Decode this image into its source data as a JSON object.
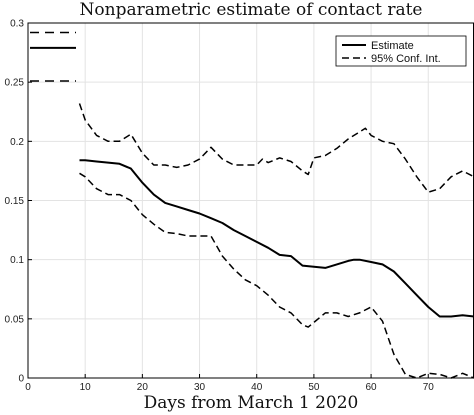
{
  "chart_data": {
    "type": "line",
    "title": "Nonparametric estimate of contact rate",
    "xlabel": "Days from March 1 2020",
    "ylabel": "",
    "xlim": [
      0,
      78
    ],
    "ylim": [
      0,
      0.3
    ],
    "x_ticks": [
      0,
      10,
      20,
      30,
      40,
      50,
      60,
      70
    ],
    "x_tick_labels": [
      "0",
      "10",
      "20",
      "30",
      "40",
      "50",
      "60",
      "70"
    ],
    "y_ticks": [
      0,
      0.05,
      0.1,
      0.15,
      0.2,
      0.25,
      0.3
    ],
    "y_tick_labels": [
      "0",
      "0.05",
      "0.1",
      "0.15",
      "0.2",
      "0.25",
      "0.3"
    ],
    "grid": true,
    "legend_position": "top-right",
    "legend": [
      {
        "label": "Estimate",
        "style": "solid"
      },
      {
        "label": "95% Conf. Int.",
        "style": "dashed"
      }
    ],
    "left_margin_marks": [
      {
        "y": 0.292,
        "style": "dashed"
      },
      {
        "y": 0.279,
        "style": "solid"
      },
      {
        "y": 0.251,
        "style": "dashed"
      }
    ],
    "series": [
      {
        "style": "solid",
        "x": [
          9,
          10,
          12,
          14,
          16,
          18,
          20,
          22,
          24,
          26,
          28,
          30,
          32,
          34,
          36,
          38,
          40,
          42,
          44,
          46,
          48,
          50,
          52,
          54,
          56,
          57,
          58,
          60,
          62,
          64,
          66,
          68,
          70,
          72,
          74,
          76,
          78
        ],
        "y": [
          0.184,
          0.184,
          0.183,
          0.182,
          0.181,
          0.177,
          0.165,
          0.155,
          0.148,
          0.145,
          0.142,
          0.139,
          0.135,
          0.131,
          0.125,
          0.12,
          0.115,
          0.11,
          0.104,
          0.103,
          0.095,
          0.094,
          0.093,
          0.096,
          0.099,
          0.1,
          0.1,
          0.098,
          0.096,
          0.09,
          0.08,
          0.07,
          0.06,
          0.052,
          0.052,
          0.053,
          0.052
        ]
      },
      {
        "style": "dashed",
        "x": [
          9,
          10,
          12,
          14,
          16,
          18,
          20,
          22,
          24,
          26,
          28,
          30,
          32,
          34,
          36,
          38,
          40,
          41,
          42,
          44,
          46,
          48,
          49,
          50,
          52,
          54,
          56,
          58,
          59,
          60,
          62,
          64,
          66,
          68,
          70,
          72,
          74,
          76,
          78
        ],
        "y": [
          0.232,
          0.218,
          0.205,
          0.2,
          0.2,
          0.206,
          0.19,
          0.18,
          0.18,
          0.178,
          0.18,
          0.185,
          0.195,
          0.185,
          0.18,
          0.18,
          0.18,
          0.185,
          0.182,
          0.186,
          0.183,
          0.175,
          0.172,
          0.186,
          0.188,
          0.194,
          0.202,
          0.208,
          0.211,
          0.205,
          0.2,
          0.198,
          0.185,
          0.17,
          0.157,
          0.16,
          0.17,
          0.175,
          0.17
        ]
      },
      {
        "style": "dashed",
        "x": [
          9,
          10,
          12,
          14,
          16,
          18,
          20,
          22,
          24,
          26,
          28,
          30,
          32,
          34,
          36,
          38,
          40,
          42,
          44,
          46,
          48,
          49,
          50,
          52,
          54,
          56,
          58,
          60,
          62,
          64,
          66,
          68,
          70,
          72,
          74,
          76,
          78
        ],
        "y": [
          0.173,
          0.17,
          0.16,
          0.155,
          0.155,
          0.15,
          0.138,
          0.13,
          0.123,
          0.122,
          0.12,
          0.12,
          0.12,
          0.103,
          0.092,
          0.083,
          0.078,
          0.07,
          0.06,
          0.055,
          0.045,
          0.043,
          0.047,
          0.055,
          0.055,
          0.052,
          0.055,
          0.06,
          0.048,
          0.02,
          0.003,
          0.0,
          0.004,
          0.003,
          0.0,
          0.004,
          0.0
        ]
      }
    ]
  }
}
